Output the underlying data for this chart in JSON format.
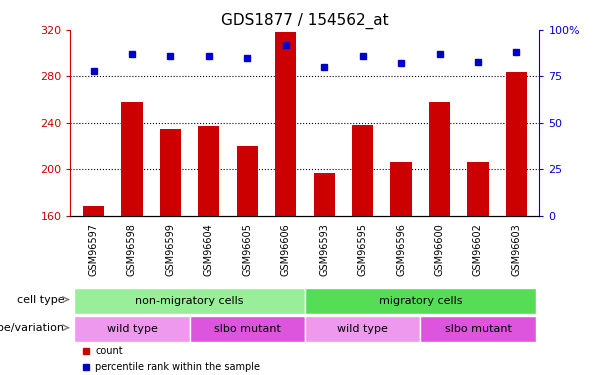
{
  "title": "GDS1877 / 154562_at",
  "samples": [
    "GSM96597",
    "GSM96598",
    "GSM96599",
    "GSM96604",
    "GSM96605",
    "GSM96606",
    "GSM96593",
    "GSM96595",
    "GSM96596",
    "GSM96600",
    "GSM96602",
    "GSM96603"
  ],
  "counts": [
    168,
    258,
    235,
    237,
    220,
    318,
    197,
    238,
    206,
    258,
    206,
    284
  ],
  "percentiles": [
    78,
    87,
    86,
    86,
    85,
    92,
    80,
    86,
    82,
    87,
    83,
    88
  ],
  "ylim_left": [
    160,
    320
  ],
  "ylim_right": [
    0,
    100
  ],
  "yticks_left": [
    160,
    200,
    240,
    280,
    320
  ],
  "yticks_right": [
    0,
    25,
    50,
    75,
    100
  ],
  "bar_color": "#cc0000",
  "dot_color": "#0000cc",
  "cell_type_groups": [
    {
      "label": "non-migratory cells",
      "start": 0,
      "end": 6,
      "color": "#99ee99"
    },
    {
      "label": "migratory cells",
      "start": 6,
      "end": 12,
      "color": "#55dd55"
    }
  ],
  "genotype_groups": [
    {
      "label": "wild type",
      "start": 0,
      "end": 3,
      "color": "#ee99ee"
    },
    {
      "label": "slbo mutant",
      "start": 3,
      "end": 6,
      "color": "#dd55dd"
    },
    {
      "label": "wild type",
      "start": 6,
      "end": 9,
      "color": "#ee99ee"
    },
    {
      "label": "slbo mutant",
      "start": 9,
      "end": 12,
      "color": "#dd55dd"
    }
  ],
  "cell_type_label": "cell type",
  "genotype_label": "genotype/variation",
  "legend_count_label": "count",
  "legend_percentile_label": "percentile rank within the sample",
  "background_color": "#ffffff",
  "title_fontsize": 11,
  "tick_fontsize": 8,
  "label_fontsize": 8,
  "row_fontsize": 8
}
